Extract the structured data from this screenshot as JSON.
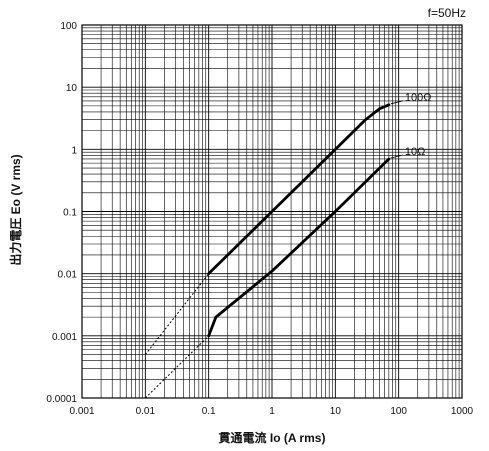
{
  "chart_data": {
    "type": "line",
    "annotation": "f=50Hz",
    "xlabel": "貫通電流 Io (A rms)",
    "ylabel": "出力電圧 Eo (V rms)",
    "x_scale": "log",
    "y_scale": "log",
    "xlim": [
      0.001,
      1000
    ],
    "ylim": [
      0.0001,
      100
    ],
    "x_tick_labels": [
      "0.001",
      "0.01",
      "0.1",
      "1",
      "10",
      "100",
      "1000"
    ],
    "y_tick_labels": [
      "0.0001",
      "0.001",
      "0.01",
      "0.1",
      "1",
      "10",
      "100"
    ],
    "grid": true,
    "series": [
      {
        "name": "100Ω",
        "dashed_segment": {
          "x": [
            0.01,
            0.1
          ],
          "y": [
            0.0005,
            0.01
          ]
        },
        "solid_segment": {
          "x": [
            0.1,
            0.3,
            1,
            3,
            10,
            20,
            30,
            50,
            70
          ],
          "y": [
            0.01,
            0.03,
            0.1,
            0.3,
            1,
            2,
            3,
            4.5,
            5.2
          ]
        }
      },
      {
        "name": "10Ω",
        "dashed_segment": {
          "x": [
            0.01,
            0.1
          ],
          "y": [
            0.0001,
            0.001
          ]
        },
        "solid_segment": {
          "x": [
            0.1,
            0.13,
            1,
            10,
            70
          ],
          "y": [
            0.001,
            0.002,
            0.011,
            0.1,
            0.7
          ]
        }
      }
    ]
  }
}
